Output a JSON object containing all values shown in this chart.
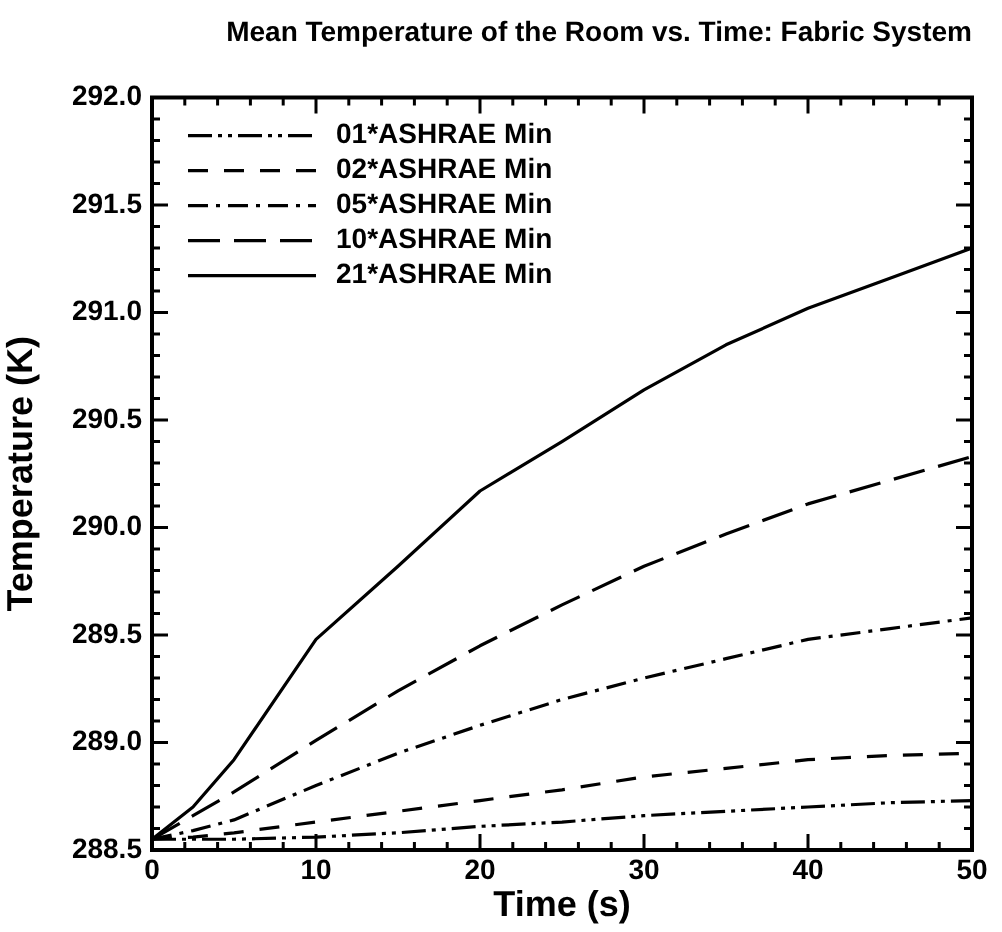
{
  "chart_data": {
    "type": "line",
    "title": "Mean Temperature of the Room vs. Time: Fabric System",
    "xlabel": "Time (s)",
    "ylabel": "Temperature (K)",
    "x": [
      0,
      2.5,
      5,
      10,
      15,
      20,
      25,
      30,
      35,
      40,
      45,
      50
    ],
    "series": [
      {
        "name": "01*ASHRAE Min",
        "color": "#000000",
        "line_style": "dashdotdot",
        "values": [
          288.55,
          288.55,
          288.55,
          288.56,
          288.58,
          288.61,
          288.63,
          288.66,
          288.68,
          288.7,
          288.72,
          288.73
        ]
      },
      {
        "name": "02*ASHRAE Min",
        "color": "#000000",
        "line_style": "dashed",
        "values": [
          288.55,
          288.56,
          288.58,
          288.63,
          288.68,
          288.73,
          288.78,
          288.84,
          288.88,
          288.92,
          288.94,
          288.95
        ]
      },
      {
        "name": "05*ASHRAE Min",
        "color": "#000000",
        "line_style": "dashdot",
        "values": [
          288.55,
          288.59,
          288.64,
          288.8,
          288.95,
          289.08,
          289.2,
          289.3,
          289.39,
          289.48,
          289.53,
          289.58
        ]
      },
      {
        "name": "10*ASHRAE Min",
        "color": "#000000",
        "line_style": "longdash",
        "values": [
          288.55,
          288.66,
          288.77,
          289.01,
          289.24,
          289.45,
          289.64,
          289.82,
          289.97,
          290.11,
          290.22,
          290.33
        ]
      },
      {
        "name": "21*ASHRAE Min",
        "color": "#000000",
        "line_style": "solid",
        "values": [
          288.55,
          288.7,
          288.92,
          289.48,
          289.82,
          290.17,
          290.4,
          290.64,
          290.85,
          291.02,
          291.16,
          291.3
        ]
      }
    ],
    "xlim": [
      0,
      50
    ],
    "ylim": [
      288.5,
      292.0
    ],
    "xticks": [
      0,
      {
        "value": 2,
        "label": null
      },
      {
        "value": 4,
        "label": null
      },
      {
        "value": 6,
        "label": null
      },
      {
        "value": 8,
        "label": null
      },
      10,
      {
        "value": 12,
        "label": null
      },
      {
        "value": 14,
        "label": null
      },
      {
        "value": 16,
        "label": null
      },
      {
        "value": 18,
        "label": null
      },
      20,
      {
        "value": 22,
        "label": null
      },
      {
        "value": 24,
        "label": null
      },
      {
        "value": 26,
        "label": null
      },
      {
        "value": 28,
        "label": null
      },
      30,
      {
        "value": 32,
        "label": null
      },
      {
        "value": 34,
        "label": null
      },
      {
        "value": 36,
        "label": null
      },
      {
        "value": 38,
        "label": null
      },
      40,
      {
        "value": 42,
        "label": null
      },
      {
        "value": 44,
        "label": null
      },
      {
        "value": 46,
        "label": null
      },
      {
        "value": 48,
        "label": null
      },
      50
    ],
    "yticks": [
      {
        "value": 288.5,
        "label": "288.5"
      },
      {
        "value": 288.6,
        "label": null
      },
      {
        "value": 288.7,
        "label": null
      },
      {
        "value": 288.8,
        "label": null
      },
      {
        "value": 288.9,
        "label": null
      },
      {
        "value": 289.0,
        "label": "289.0"
      },
      {
        "value": 289.1,
        "label": null
      },
      {
        "value": 289.2,
        "label": null
      },
      {
        "value": 289.3,
        "label": null
      },
      {
        "value": 289.4,
        "label": null
      },
      {
        "value": 289.5,
        "label": "289.5"
      },
      {
        "value": 289.6,
        "label": null
      },
      {
        "value": 289.7,
        "label": null
      },
      {
        "value": 289.8,
        "label": null
      },
      {
        "value": 289.9,
        "label": null
      },
      {
        "value": 290.0,
        "label": "290.0"
      },
      {
        "value": 290.1,
        "label": null
      },
      {
        "value": 290.2,
        "label": null
      },
      {
        "value": 290.3,
        "label": null
      },
      {
        "value": 290.4,
        "label": null
      },
      {
        "value": 290.5,
        "label": "290.5"
      },
      {
        "value": 290.6,
        "label": null
      },
      {
        "value": 290.7,
        "label": null
      },
      {
        "value": 290.8,
        "label": null
      },
      {
        "value": 290.9,
        "label": null
      },
      {
        "value": 291.0,
        "label": "291.0"
      },
      {
        "value": 291.1,
        "label": null
      },
      {
        "value": 291.2,
        "label": null
      },
      {
        "value": 291.3,
        "label": null
      },
      {
        "value": 291.4,
        "label": null
      },
      {
        "value": 291.5,
        "label": "291.5"
      },
      {
        "value": 291.6,
        "label": null
      },
      {
        "value": 291.7,
        "label": null
      },
      {
        "value": 291.8,
        "label": null
      },
      {
        "value": 291.9,
        "label": null
      },
      {
        "value": 292.0,
        "label": "292.0"
      }
    ],
    "grid": false,
    "legend": "top left",
    "marker": "none"
  }
}
